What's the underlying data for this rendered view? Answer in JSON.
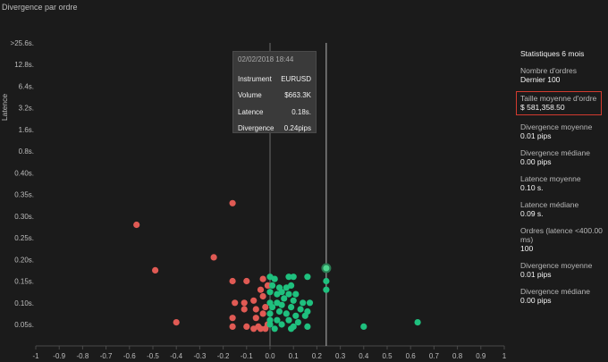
{
  "page": {
    "title": "Divergence par ordre"
  },
  "chart_data": {
    "type": "scatter",
    "ylabel": "Latence",
    "y_ticks": [
      ">25.6s.",
      "12.8s.",
      "6.4s.",
      "3.2s.",
      "1.6s.",
      "0.8s.",
      "0.40s.",
      "0.35s.",
      "0.30s.",
      "0.25s.",
      "0.20s.",
      "0.15s.",
      "0.10s.",
      "0.05s."
    ],
    "x_ticks": [
      "-1",
      "-0.9",
      "-0.8",
      "-0.7",
      "-0.6",
      "-0.5",
      "-0.4",
      "-0.3",
      "-0.2",
      "-0.1",
      "0.0",
      "0.1",
      "0.2",
      "0.3",
      "0.4",
      "0.5",
      "0.6",
      "0.7",
      "0.8",
      "0.9",
      "1"
    ],
    "xlim": [
      -1,
      1
    ],
    "reference_line_x": 0.24,
    "colors": {
      "negative": "#e05a54",
      "positive": "#1fc07e",
      "highlight": "#4fd58f"
    },
    "series": [
      {
        "color": "negative",
        "points": [
          [
            -0.57,
            0.28
          ],
          [
            -0.16,
            0.33
          ],
          [
            -0.49,
            0.175
          ],
          [
            -0.24,
            0.205
          ],
          [
            -0.4,
            0.055
          ],
          [
            -0.16,
            0.15
          ],
          [
            -0.1,
            0.15
          ],
          [
            -0.03,
            0.155
          ],
          [
            -0.04,
            0.13
          ],
          [
            -0.01,
            0.14
          ],
          [
            -0.03,
            0.115
          ],
          [
            -0.07,
            0.105
          ],
          [
            -0.11,
            0.1
          ],
          [
            -0.15,
            0.1
          ],
          [
            -0.02,
            0.09
          ],
          [
            -0.06,
            0.085
          ],
          [
            -0.11,
            0.085
          ],
          [
            -0.03,
            0.075
          ],
          [
            -0.16,
            0.065
          ],
          [
            -0.06,
            0.065
          ],
          [
            -0.16,
            0.045
          ],
          [
            -0.1,
            0.045
          ],
          [
            -0.05,
            0.045
          ],
          [
            -0.01,
            0.05
          ],
          [
            -0.02,
            0.04
          ],
          [
            -0.07,
            0.04
          ],
          [
            -0.04,
            0.04
          ]
        ]
      },
      {
        "color": "positive",
        "points": [
          [
            0.0,
            0.16
          ],
          [
            0.02,
            0.155
          ],
          [
            0.08,
            0.16
          ],
          [
            0.1,
            0.16
          ],
          [
            0.16,
            0.16
          ],
          [
            0.01,
            0.14
          ],
          [
            0.04,
            0.135
          ],
          [
            0.07,
            0.135
          ],
          [
            0.09,
            0.14
          ],
          [
            0.24,
            0.15
          ],
          [
            0.24,
            0.13
          ],
          [
            0.0,
            0.125
          ],
          [
            0.03,
            0.12
          ],
          [
            0.05,
            0.125
          ],
          [
            0.08,
            0.12
          ],
          [
            0.11,
            0.12
          ],
          [
            0.06,
            0.11
          ],
          [
            0.0,
            0.1
          ],
          [
            0.03,
            0.1
          ],
          [
            0.1,
            0.105
          ],
          [
            0.14,
            0.1
          ],
          [
            0.17,
            0.1
          ],
          [
            0.01,
            0.09
          ],
          [
            0.05,
            0.095
          ],
          [
            0.09,
            0.09
          ],
          [
            0.13,
            0.085
          ],
          [
            0.16,
            0.08
          ],
          [
            0.0,
            0.075
          ],
          [
            0.04,
            0.08
          ],
          [
            0.07,
            0.075
          ],
          [
            0.11,
            0.07
          ],
          [
            0.15,
            0.07
          ],
          [
            0.0,
            0.06
          ],
          [
            0.03,
            0.06
          ],
          [
            0.08,
            0.06
          ],
          [
            0.12,
            0.055
          ],
          [
            0.0,
            0.05
          ],
          [
            0.05,
            0.05
          ],
          [
            0.1,
            0.045
          ],
          [
            0.16,
            0.045
          ],
          [
            0.4,
            0.045
          ],
          [
            0.63,
            0.055
          ],
          [
            0.02,
            0.04
          ],
          [
            0.09,
            0.04
          ]
        ]
      },
      {
        "color": "highlight",
        "points": [
          [
            0.24,
            0.18
          ]
        ]
      }
    ]
  },
  "tooltip": {
    "timestamp": "02/02/2018 18:44",
    "rows": [
      {
        "label": "Instrument",
        "value": "EURUSD"
      },
      {
        "label": "Volume",
        "value": "$663.3K"
      },
      {
        "label": "Latence",
        "value": "0.18s."
      },
      {
        "label": "Divergence",
        "value": "0.24pips"
      }
    ]
  },
  "stats": {
    "title": "Statistiques 6 mois",
    "items": [
      {
        "label": "Nombre d'ordres",
        "value": "Dernier 100"
      },
      {
        "label": "Taille moyenne d'ordre",
        "value": "$ 581,358.50"
      },
      {
        "label": "Divergence moyenne",
        "value": "0.01 pips"
      },
      {
        "label": "Divergence médiane",
        "value": "0.00 pips"
      },
      {
        "label": "Latence moyenne",
        "value": "0.10 s."
      },
      {
        "label": "Latence médiane",
        "value": "0.09 s."
      },
      {
        "label": "Ordres (latence <400.00 ms)",
        "value": "100"
      },
      {
        "label": "Divergence moyenne",
        "value": "0.01 pips"
      },
      {
        "label": "Divergence médiane",
        "value": "0.00 pips"
      }
    ]
  }
}
